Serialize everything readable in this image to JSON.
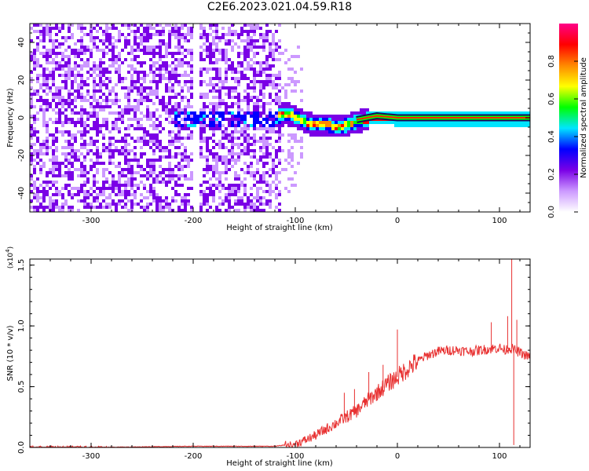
{
  "page_title": "C2E6.2023.021.04.59.R18",
  "chart_data": [
    {
      "type": "heatmap",
      "xlabel": "Height of straight line (km)",
      "ylabel": "Frequency (Hz)",
      "xlim": [
        -360,
        130
      ],
      "ylim": [
        -50,
        50
      ],
      "xticks": [
        -300,
        -200,
        -100,
        0,
        100
      ],
      "yticks": [
        -40,
        -20,
        0,
        20,
        40
      ],
      "colorbar": {
        "label": "Normalized spectral amplitude",
        "range": [
          0.0,
          1.0
        ],
        "ticks": [
          0.0,
          0.2,
          0.4,
          0.6,
          0.8
        ],
        "colors": [
          "#ffffff",
          "#cc99ff",
          "#7a00e6",
          "#0000ff",
          "#00e5ff",
          "#00ff00",
          "#ffff00",
          "#ff8800",
          "#ff0000",
          "#ff0088"
        ]
      },
      "ridge": {
        "x": [
          -120,
          -110,
          -100,
          -90,
          -80,
          -70,
          -60,
          -50,
          -40,
          -30,
          -20,
          0,
          50,
          100,
          130
        ],
        "y": [
          2,
          3,
          1,
          -2,
          -3,
          -3,
          -4,
          -3,
          -1,
          0,
          1,
          0,
          0,
          0,
          0
        ]
      },
      "noise_region_x": [
        -360,
        -115
      ]
    },
    {
      "type": "line",
      "xlabel": "Height of straight line (km)",
      "ylabel": "SNR (10 * v/v)",
      "y_multiplier": "(x10^4)",
      "xlim": [
        -360,
        130
      ],
      "ylim": [
        0,
        1.55
      ],
      "xticks": [
        -300,
        -200,
        -100,
        0,
        100
      ],
      "yticks": [
        0.0,
        0.5,
        1.0,
        1.5
      ],
      "series": [
        {
          "color": "#e83030",
          "x": [
            -360,
            -300,
            -200,
            -150,
            -120,
            -100,
            -90,
            -80,
            -70,
            -60,
            -50,
            -40,
            -30,
            -20,
            -10,
            0,
            10,
            20,
            30,
            40,
            50,
            60,
            70,
            80,
            90,
            100,
            105,
            110,
            115,
            120,
            130
          ],
          "y": [
            0.0,
            0.0,
            0.01,
            0.01,
            0.01,
            0.03,
            0.06,
            0.1,
            0.15,
            0.2,
            0.25,
            0.3,
            0.38,
            0.45,
            0.52,
            0.58,
            0.65,
            0.71,
            0.76,
            0.79,
            0.8,
            0.8,
            0.79,
            0.8,
            0.81,
            0.82,
            0.8,
            0.82,
            0.8,
            0.78,
            0.74
          ],
          "spikes": [
            {
              "x": -52,
              "y": 0.45
            },
            {
              "x": -42,
              "y": 0.48
            },
            {
              "x": -28,
              "y": 0.62
            },
            {
              "x": -14,
              "y": 0.68
            },
            {
              "x": 0,
              "y": 0.97
            },
            {
              "x": 92,
              "y": 1.03
            },
            {
              "x": 108,
              "y": 1.08
            },
            {
              "x": 112,
              "y": 1.55
            },
            {
              "x": 114,
              "y": 0.02
            },
            {
              "x": 117,
              "y": 1.05
            }
          ]
        }
      ]
    }
  ]
}
